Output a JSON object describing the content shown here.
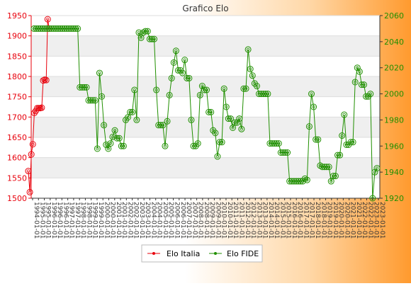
{
  "chart_data": {
    "type": "line",
    "title": "Grafico Elo",
    "y_left": {
      "min": 1500,
      "max": 1950,
      "ticks": [
        1500,
        1550,
        1600,
        1650,
        1700,
        1750,
        1800,
        1850,
        1900,
        1950
      ],
      "color": "#e8000b"
    },
    "y_right": {
      "min": 1920,
      "max": 2060,
      "ticks": [
        1920,
        1940,
        1960,
        1980,
        2000,
        2020,
        2040,
        2060
      ],
      "color": "#208f00"
    },
    "grid": true,
    "legend_position": "bottom",
    "series": [
      {
        "name": "Elo Italia",
        "axis": "left",
        "color": "#e8000b",
        "values": [
          1567,
          1515,
          1608,
          1633,
          1710,
          1715,
          1722,
          1722,
          1722,
          1723,
          1790,
          1792,
          1791,
          1941,
          1918
        ]
      },
      {
        "name": "Elo FIDE",
        "axis": "right",
        "color": "#208f00",
        "values": [
          2050,
          2050,
          2050,
          2050,
          2050,
          2050,
          2050,
          2050,
          2050,
          2050,
          2050,
          2050,
          2050,
          2050,
          2050,
          2050,
          2050,
          2050,
          2050,
          2050,
          2050,
          2005,
          2005,
          2005,
          2005,
          1995,
          1995,
          1995,
          1995,
          1958,
          2016,
          1998,
          1976,
          1961,
          1958,
          1962,
          1967,
          1972,
          1966,
          1966,
          1960,
          1960,
          1980,
          1982,
          1986,
          1986,
          2003,
          1980,
          2047,
          2043,
          2047,
          2048,
          2048,
          2042,
          2042,
          2042,
          2003,
          1976,
          1976,
          1976,
          1960,
          1979,
          1999,
          2012,
          2024,
          2033,
          2018,
          2018,
          2016,
          2026,
          2012,
          2012,
          1980,
          1960,
          1960,
          1962,
          1999,
          2006,
          2003,
          2003,
          1986,
          1986,
          1972,
          1970,
          1952,
          1963,
          1963,
          2004,
          1990,
          1981,
          1981,
          1974,
          1978,
          1978,
          1981,
          1973,
          2004,
          2004,
          2034,
          2019,
          2014,
          2008,
          2006,
          2000,
          2000,
          2000,
          2000,
          2000,
          1962,
          1962,
          1962,
          1962,
          1962,
          1955,
          1955,
          1955,
          1955,
          1933,
          1933,
          1933,
          1933,
          1933,
          1933,
          1933,
          1935,
          1934,
          1975,
          2000,
          1990,
          1965,
          1965,
          1945,
          1944,
          1944,
          1944,
          1944,
          1933,
          1937,
          1937,
          1953,
          1953,
          1968,
          1984,
          1961,
          1961,
          1963,
          1963,
          2009,
          2020,
          2017,
          2007,
          2007,
          1998,
          1998,
          2000,
          1920,
          1940,
          1943
        ]
      }
    ],
    "x_labels": [
      "1994-01-01",
      "1995-01-01",
      "1995-01-01",
      "1996-01-01",
      "1996-01-01",
      "1996-01-01",
      "1997-01-01",
      "1997-01-01",
      "1998-01-01",
      "1998-01-01",
      "1999-01-01",
      "1999-01-01",
      "2000-01-01",
      "2000-01-01",
      "2001-01-01",
      "2001-01-01",
      "2002-01-01",
      "2002-01-01",
      "2003-01-01",
      "2003-01-01",
      "2004-01-01",
      "2004-01-01",
      "2005-01-01",
      "2005-01-01",
      "2006-01-01",
      "2006-01-01",
      "2007-01-01",
      "2007-01-01",
      "2008-01-01",
      "2008-01-01",
      "2009-01-01",
      "2009-01-01",
      "2010-01-01",
      "2010-01-01",
      "2011-01-01",
      "2011-01-01",
      "2012-01-01",
      "2012-01-01",
      "2013-01-01",
      "2013-01-01",
      "2014-01-01",
      "2014-01-01",
      "2015-01-01",
      "2015-01-01",
      "2016-01-01",
      "2016-01-01",
      "2017-01-01",
      "2017-01-01",
      "2018-01-01",
      "2018-01-01",
      "2019-01-01",
      "2019-01-01",
      "2020-01-01",
      "2020-01-01",
      "2021-01-01",
      "2021-01-01",
      "2022-01-01",
      "2022-01-01",
      "2023-01-01",
      "2023-01-01"
    ]
  }
}
